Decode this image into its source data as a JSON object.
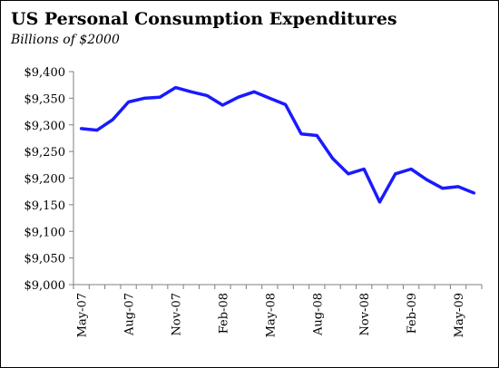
{
  "chart_data": {
    "type": "line",
    "title": "US Personal Consumption Expenditures",
    "subtitle": "Billions of $2000",
    "xlabel": "",
    "ylabel": "",
    "ylim": [
      9000,
      9400
    ],
    "yticks": [
      9000,
      9050,
      9100,
      9150,
      9200,
      9250,
      9300,
      9350,
      9400
    ],
    "ytick_labels": [
      "$9,000",
      "$9,050",
      "$9,100",
      "$9,150",
      "$9,200",
      "$9,250",
      "$9,300",
      "$9,350",
      "$9,400"
    ],
    "x": [
      "May-07",
      "Jun-07",
      "Jul-07",
      "Aug-07",
      "Sep-07",
      "Oct-07",
      "Nov-07",
      "Dec-07",
      "Jan-08",
      "Feb-08",
      "Mar-08",
      "Apr-08",
      "May-08",
      "Jun-08",
      "Jul-08",
      "Aug-08",
      "Sep-08",
      "Oct-08",
      "Nov-08",
      "Dec-08",
      "Jan-09",
      "Feb-09",
      "Mar-09",
      "Apr-09",
      "May-09",
      "Jun-09"
    ],
    "xtick_labels": [
      "May-07",
      "Aug-07",
      "Nov-07",
      "Feb-08",
      "May-08",
      "Aug-08",
      "Nov-08",
      "Feb-09",
      "May-09"
    ],
    "series": [
      {
        "color": "#1a1aff",
        "values": [
          9293,
          9290,
          9310,
          9343,
          9350,
          9352,
          9370,
          9362,
          9355,
          9337,
          9352,
          9362,
          9350,
          9338,
          9283,
          9280,
          9237,
          9208,
          9217,
          9155,
          9208,
          9217,
          9197,
          9181,
          9184,
          9172
        ]
      }
    ],
    "grid": false,
    "legend": "none"
  }
}
